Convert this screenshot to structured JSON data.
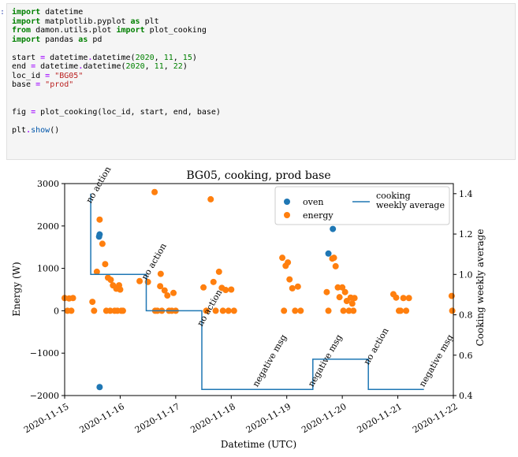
{
  "cell": {
    "prompt": ":",
    "lines": [
      [
        {
          "t": "import",
          "c": "kw"
        },
        {
          "t": " datetime"
        }
      ],
      [
        {
          "t": "import",
          "c": "kw"
        },
        {
          "t": " matplotlib.pyplot "
        },
        {
          "t": "as",
          "c": "kw"
        },
        {
          "t": " plt"
        }
      ],
      [
        {
          "t": "from",
          "c": "kw"
        },
        {
          "t": " damon.utils.plot "
        },
        {
          "t": "import",
          "c": "kw"
        },
        {
          "t": " plot_cooking"
        }
      ],
      [
        {
          "t": "import",
          "c": "kw"
        },
        {
          "t": " pandas "
        },
        {
          "t": "as",
          "c": "kw"
        },
        {
          "t": " pd"
        }
      ],
      [],
      [
        {
          "t": "start "
        },
        {
          "t": "=",
          "c": "op"
        },
        {
          "t": " datetime"
        },
        {
          "t": ".",
          "c": "op"
        },
        {
          "t": "datetime("
        },
        {
          "t": "2020",
          "c": "num"
        },
        {
          "t": ", "
        },
        {
          "t": "11",
          "c": "num"
        },
        {
          "t": ", "
        },
        {
          "t": "15",
          "c": "num"
        },
        {
          "t": ")"
        }
      ],
      [
        {
          "t": "end "
        },
        {
          "t": "=",
          "c": "op"
        },
        {
          "t": " datetime"
        },
        {
          "t": ".",
          "c": "op"
        },
        {
          "t": "datetime("
        },
        {
          "t": "2020",
          "c": "num"
        },
        {
          "t": ", "
        },
        {
          "t": "11",
          "c": "num"
        },
        {
          "t": ", "
        },
        {
          "t": "22",
          "c": "num"
        },
        {
          "t": ")"
        }
      ],
      [
        {
          "t": "loc_id "
        },
        {
          "t": "=",
          "c": "op"
        },
        {
          "t": " "
        },
        {
          "t": "\"BG05\"",
          "c": "str"
        }
      ],
      [
        {
          "t": "base "
        },
        {
          "t": "=",
          "c": "op"
        },
        {
          "t": " "
        },
        {
          "t": "\"prod\"",
          "c": "str"
        }
      ],
      [],
      [],
      [
        {
          "t": "fig "
        },
        {
          "t": "=",
          "c": "op"
        },
        {
          "t": " plot_cooking(loc_id, start, end, base)"
        }
      ],
      [],
      [
        {
          "t": "plt"
        },
        {
          "t": ".",
          "c": "op"
        },
        {
          "t": "show",
          "c": "fn"
        },
        {
          "t": "()"
        }
      ]
    ]
  },
  "chart_data": {
    "type": "scatter",
    "title": "BG05, cooking, prod base",
    "xlabel": "Datetime (UTC)",
    "ylabel": "Energy (W)",
    "ylabel_right": "Cooking weekly average",
    "x_ticks": [
      "2020-11-15",
      "2020-11-16",
      "2020-11-17",
      "2020-11-18",
      "2020-11-19",
      "2020-11-20",
      "2020-11-21",
      "2020-11-22"
    ],
    "xlim": [
      0,
      7
    ],
    "ylim": [
      -2000,
      3000
    ],
    "ylim_right": [
      0.4,
      1.45
    ],
    "y_ticks": [
      -2000,
      -1000,
      0,
      1000,
      2000,
      3000
    ],
    "y_ticks_right": [
      0.4,
      0.6,
      0.8,
      1.0,
      1.2,
      1.4
    ],
    "legend": {
      "placement": "top-right",
      "entries": [
        {
          "name": "oven",
          "color": "#1f77b4",
          "kind": "marker"
        },
        {
          "name": "energy",
          "color": "#ff7f0e",
          "kind": "marker"
        },
        {
          "name": "cooking\nweekly average",
          "color": "#1f77b4",
          "kind": "line"
        }
      ]
    },
    "series": [
      {
        "name": "oven",
        "color": "#1f77b4",
        "points": [
          [
            0.63,
            1800
          ],
          [
            0.62,
            1750
          ],
          [
            0.63,
            -1800
          ],
          [
            4.75,
            1350
          ],
          [
            4.83,
            1930
          ]
        ]
      },
      {
        "name": "energy",
        "color": "#ff7f0e",
        "points": [
          [
            0.0,
            300
          ],
          [
            0.05,
            0
          ],
          [
            0.08,
            290
          ],
          [
            0.12,
            0
          ],
          [
            0.15,
            300
          ],
          [
            0.5,
            210
          ],
          [
            0.53,
            0
          ],
          [
            0.58,
            920
          ],
          [
            0.63,
            2150
          ],
          [
            0.68,
            1580
          ],
          [
            0.73,
            1100
          ],
          [
            0.75,
            0
          ],
          [
            0.78,
            780
          ],
          [
            0.82,
            0
          ],
          [
            0.83,
            730
          ],
          [
            0.87,
            600
          ],
          [
            0.9,
            0
          ],
          [
            0.93,
            520
          ],
          [
            0.95,
            0
          ],
          [
            0.98,
            600
          ],
          [
            1.0,
            500
          ],
          [
            1.02,
            0
          ],
          [
            1.05,
            0
          ],
          [
            1.35,
            700
          ],
          [
            1.5,
            680
          ],
          [
            1.62,
            2800
          ],
          [
            1.63,
            0
          ],
          [
            1.67,
            0
          ],
          [
            1.72,
            580
          ],
          [
            1.73,
            870
          ],
          [
            1.75,
            0
          ],
          [
            1.8,
            480
          ],
          [
            1.85,
            360
          ],
          [
            1.88,
            0
          ],
          [
            1.93,
            0
          ],
          [
            1.96,
            420
          ],
          [
            2.0,
            0
          ],
          [
            2.5,
            550
          ],
          [
            2.55,
            0
          ],
          [
            2.63,
            2630
          ],
          [
            2.68,
            680
          ],
          [
            2.72,
            0
          ],
          [
            2.78,
            920
          ],
          [
            2.83,
            540
          ],
          [
            2.85,
            0
          ],
          [
            2.9,
            490
          ],
          [
            2.95,
            0
          ],
          [
            3.0,
            500
          ],
          [
            3.05,
            0
          ],
          [
            3.92,
            1250
          ],
          [
            3.95,
            0
          ],
          [
            3.98,
            1060
          ],
          [
            4.02,
            1140
          ],
          [
            4.05,
            740
          ],
          [
            4.1,
            530
          ],
          [
            4.15,
            0
          ],
          [
            4.2,
            570
          ],
          [
            4.25,
            0
          ],
          [
            4.72,
            440
          ],
          [
            4.75,
            0
          ],
          [
            4.82,
            1230
          ],
          [
            4.85,
            1250
          ],
          [
            4.88,
            1050
          ],
          [
            4.92,
            550
          ],
          [
            4.95,
            320
          ],
          [
            5.0,
            550
          ],
          [
            5.02,
            0
          ],
          [
            5.05,
            440
          ],
          [
            5.08,
            230
          ],
          [
            5.12,
            0
          ],
          [
            5.15,
            310
          ],
          [
            5.18,
            170
          ],
          [
            5.2,
            0
          ],
          [
            5.22,
            300
          ],
          [
            5.92,
            390
          ],
          [
            5.97,
            310
          ],
          [
            6.02,
            0
          ],
          [
            6.05,
            0
          ],
          [
            6.1,
            300
          ],
          [
            6.15,
            0
          ],
          [
            6.2,
            300
          ],
          [
            6.97,
            350
          ],
          [
            6.98,
            0
          ]
        ]
      },
      {
        "name": "cooking weekly average",
        "color": "#1f77b4",
        "axis": "right",
        "steps": [
          [
            0.47,
            1.4
          ],
          [
            0.47,
            1.0
          ],
          [
            1.47,
            1.0
          ],
          [
            1.47,
            0.82
          ],
          [
            2.47,
            0.82
          ],
          [
            2.47,
            0.43
          ],
          [
            4.47,
            0.43
          ],
          [
            4.47,
            0.58
          ],
          [
            5.47,
            0.58
          ],
          [
            5.47,
            0.43
          ],
          [
            6.47,
            0.43
          ]
        ]
      }
    ],
    "annotations": [
      {
        "text": "no action",
        "x": 0.47,
        "y_right": 1.35
      },
      {
        "text": "no action",
        "x": 1.47,
        "y_right": 0.97
      },
      {
        "text": "no action",
        "x": 2.47,
        "y_right": 0.74
      },
      {
        "text": "negative msg",
        "x": 3.47,
        "y_right": 0.44
      },
      {
        "text": "negative msg",
        "x": 4.47,
        "y_right": 0.44
      },
      {
        "text": "no action",
        "x": 5.47,
        "y_right": 0.55
      },
      {
        "text": "negative msg",
        "x": 6.47,
        "y_right": 0.44
      }
    ]
  }
}
